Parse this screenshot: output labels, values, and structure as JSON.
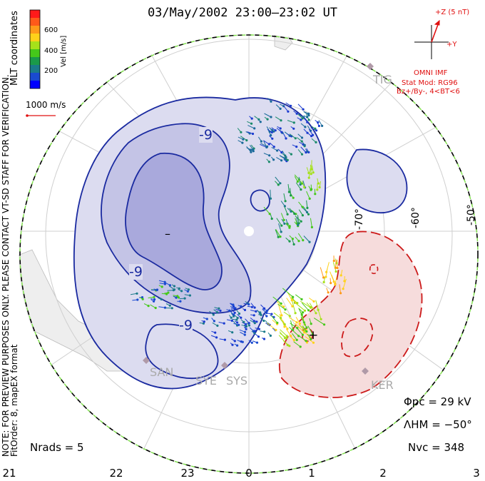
{
  "title": "03/May/2002 23:00–23:02 UT",
  "colorbar": {
    "label": "Vel [m/s]",
    "ticks": [
      "600",
      "400",
      "200"
    ],
    "colors": [
      "#ff1a1a",
      "#ff5a1a",
      "#ff9a1a",
      "#ffd21a",
      "#a6e11a",
      "#45c81a",
      "#1a9a4a",
      "#1a7a8a",
      "#1a4ad0",
      "#0000ff"
    ]
  },
  "coordinates_label": "MLT coordinates",
  "vector_scale": "1000 m/s",
  "note": "NOTE: FOR PREVIEW PURPOSES ONLY. PLEASE CONTACT VT-SD STAFF FOR VERIFICATION.",
  "fit_info": "FitOrder: 8, mapEX format",
  "imf": {
    "z_label": "+Z (5 nT)",
    "y_label": "+Y",
    "source": "OMNI IMF",
    "stat_mod": "Stat Mod: RG96",
    "condition": "Bz+/By-, 4<BT<6"
  },
  "contour_labels": [
    "-9",
    "-9",
    "-9"
  ],
  "min_marker": "–",
  "max_marker": "+",
  "lat_labels": [
    "-70°",
    "-60°",
    "-50°"
  ],
  "stations": [
    "TIG",
    "SAN",
    "SYE",
    "SYS",
    "KER"
  ],
  "mlt_labels": [
    "21",
    "22",
    "23",
    "0",
    "1",
    "2",
    "3"
  ],
  "stats": {
    "phi_pc": "Φpc = 29 kV",
    "lambda_hm": "ΛHM = −50°",
    "n_vc": "Nvc = 348",
    "n_rads": "Nrads = 5"
  }
}
